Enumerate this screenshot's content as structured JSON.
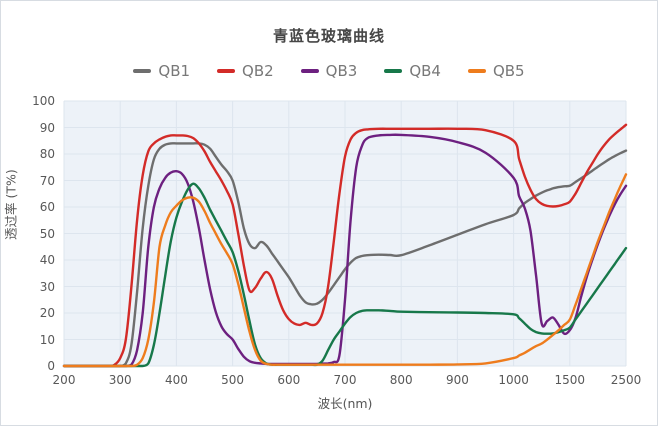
{
  "title": "青蓝色玻璃曲线",
  "axes": {
    "ylabel": "透过率 (T%)",
    "xlabel": "波长(nm)"
  },
  "style": {
    "plot_bg": "#edf2f8",
    "grid_color": "#dde5ee",
    "tick_color": "#585858",
    "title_color": "#464646",
    "legend_text_color": "#787878"
  },
  "chart_data": {
    "type": "line",
    "title": "青蓝色玻璃曲线",
    "xlabel": "波长(nm)",
    "ylabel": "透过率 (T%)",
    "x_axis_type": "piecewise-category",
    "x_ticks": [
      200,
      300,
      400,
      500,
      600,
      700,
      800,
      900,
      1000,
      1500,
      2500
    ],
    "y_ticks": [
      0,
      10,
      20,
      30,
      40,
      50,
      60,
      70,
      80,
      90,
      100
    ],
    "ylim": [
      0,
      100
    ],
    "grid": true,
    "legend_position": "top",
    "x": [
      200,
      250,
      280,
      290,
      300,
      310,
      320,
      330,
      340,
      350,
      360,
      370,
      380,
      390,
      400,
      410,
      420,
      430,
      440,
      450,
      460,
      470,
      480,
      490,
      500,
      510,
      520,
      530,
      540,
      550,
      560,
      570,
      580,
      590,
      600,
      610,
      620,
      630,
      640,
      650,
      660,
      670,
      680,
      690,
      700,
      710,
      720,
      730,
      740,
      760,
      780,
      800,
      850,
      900,
      950,
      1000,
      1050,
      1100,
      1150,
      1200,
      1250,
      1300,
      1350,
      1400,
      1450,
      1500,
      1600,
      1700,
      1800,
      1900,
      2000,
      2100,
      2200,
      2300,
      2400,
      2500
    ],
    "series": [
      {
        "name": "QB1",
        "color": "#6e6e6e",
        "values": [
          0,
          0,
          0,
          0,
          0,
          1,
          8,
          28,
          52,
          68,
          78,
          82,
          83.5,
          84,
          84,
          84,
          84,
          84,
          84,
          83.5,
          82,
          79,
          76,
          73.5,
          70,
          62,
          52,
          46,
          44.5,
          46.8,
          45.5,
          42.5,
          39.5,
          36.5,
          33.5,
          30,
          26.5,
          24,
          23.3,
          23.5,
          25,
          27.5,
          30.5,
          33.5,
          36.5,
          39,
          40.8,
          41.5,
          41.8,
          42,
          41.9,
          41.8,
          45.5,
          49.5,
          53.5,
          57,
          59.5,
          61.5,
          63,
          64.3,
          65.4,
          66.3,
          67,
          67.5,
          67.8,
          68,
          69.4,
          70.8,
          72.2,
          73.7,
          75.2,
          76.6,
          78,
          79.2,
          80.3,
          81.3
        ]
      },
      {
        "name": "QB2",
        "color": "#d32b28",
        "values": [
          0,
          0,
          0,
          0.5,
          3,
          10,
          30,
          55,
          72,
          81,
          84,
          85.5,
          86.5,
          87,
          87,
          87,
          86.8,
          86,
          84,
          81,
          77,
          73.5,
          70,
          66,
          61,
          50,
          38,
          28.5,
          29.5,
          33,
          35.5,
          33,
          26.5,
          21,
          17.7,
          16,
          15.5,
          16.3,
          15.5,
          16,
          20,
          30,
          47,
          65,
          79,
          85.5,
          88,
          89,
          89.3,
          89.5,
          89.5,
          89.5,
          89.5,
          89.5,
          89,
          85,
          78,
          71.5,
          66.5,
          63,
          61.2,
          60.4,
          60.2,
          60.4,
          61,
          62,
          65,
          69,
          73,
          76.5,
          80,
          83,
          85.5,
          87.5,
          89.3,
          91
        ]
      },
      {
        "name": "QB3",
        "color": "#6d2080",
        "values": [
          0,
          0,
          0,
          0,
          0,
          0,
          0.5,
          6,
          20,
          45,
          60,
          67,
          71,
          73,
          73.5,
          72.5,
          69,
          62,
          52,
          40,
          29,
          20.5,
          15,
          12,
          10,
          6.5,
          3.5,
          1.8,
          1.2,
          1,
          0.8,
          0.8,
          0.8,
          0.8,
          0.8,
          0.8,
          0.8,
          0.8,
          0.8,
          0.8,
          0.9,
          1,
          1.5,
          4,
          25,
          55,
          75,
          83,
          86,
          87,
          87.2,
          87.2,
          86.5,
          84.5,
          80.5,
          71,
          64,
          59.5,
          51,
          34,
          16,
          17,
          18.3,
          15.5,
          12.2,
          13.5,
          18,
          26,
          33.5,
          40,
          46,
          51.5,
          56.5,
          61,
          64.8,
          68
        ]
      },
      {
        "name": "QB4",
        "color": "#17784a",
        "values": [
          0,
          0,
          0,
          0,
          0,
          0,
          0,
          0,
          0,
          1,
          8,
          20,
          34,
          47,
          56,
          62,
          66.5,
          68.8,
          67,
          63.5,
          59,
          55,
          51,
          47,
          43,
          36,
          27,
          17,
          8,
          3,
          1,
          0.5,
          0.5,
          0.5,
          0.5,
          0.5,
          0.5,
          0.5,
          0.5,
          0.5,
          2,
          6,
          10,
          13,
          16,
          18.5,
          20,
          20.8,
          21,
          21,
          20.8,
          20.5,
          20.3,
          20.2,
          20,
          19.5,
          18,
          16,
          14,
          12.8,
          12.3,
          12.2,
          12.3,
          12.8,
          13.5,
          14.5,
          17.5,
          20.5,
          23.5,
          26.5,
          29.5,
          32.5,
          35.5,
          38.5,
          41.5,
          44.5
        ]
      },
      {
        "name": "QB5",
        "color": "#ee7c1d",
        "values": [
          0,
          0,
          0,
          0,
          0,
          0,
          0,
          0.5,
          3,
          10,
          24,
          45,
          53,
          58,
          60.5,
          62.5,
          63.5,
          63.5,
          62,
          58.5,
          54,
          50,
          46,
          42.5,
          38.5,
          31,
          22,
          13,
          6,
          2,
          0.8,
          0.5,
          0.5,
          0.5,
          0.5,
          0.5,
          0.5,
          0.5,
          0.5,
          0.5,
          0.5,
          0.5,
          0.5,
          0.5,
          0.5,
          0.5,
          0.5,
          0.5,
          0.5,
          0.5,
          0.5,
          0.5,
          0.5,
          0.6,
          1,
          3,
          4,
          5,
          6.3,
          7.5,
          8.5,
          10,
          11.7,
          13.5,
          15.5,
          17.5,
          23,
          29,
          35,
          41,
          47,
          52.5,
          58,
          63,
          67.8,
          72.3
        ]
      }
    ]
  }
}
